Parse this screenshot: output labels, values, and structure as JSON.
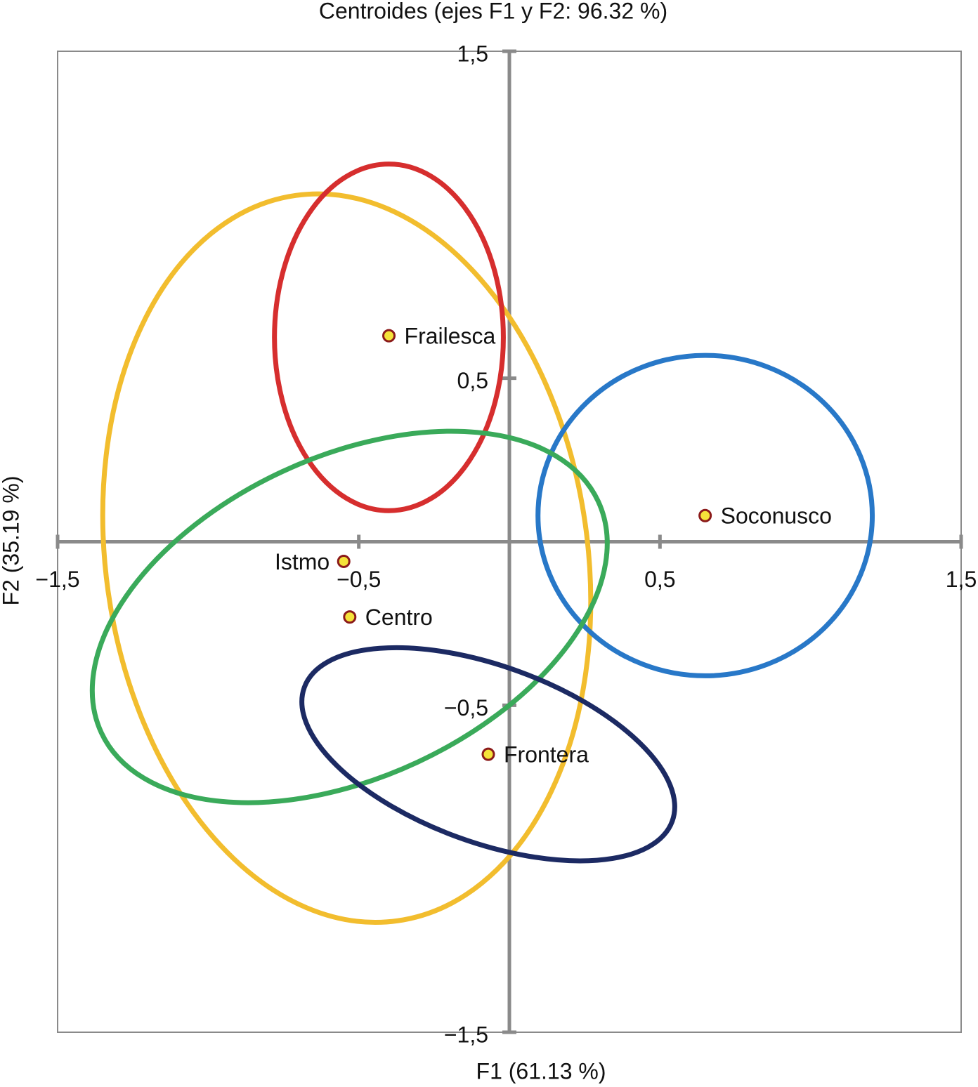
{
  "chart_data": {
    "type": "scatter",
    "title": "Centroides (ejes F1 y F2: 96.32 %)",
    "x_label": "F1 (61.13 %)",
    "y_label": "F2 (35.19 %)",
    "xlim": [
      -1.5,
      1.5
    ],
    "ylim": [
      -1.5,
      1.5
    ],
    "xticks": [
      {
        "value": -1.5,
        "label": "−1,5"
      },
      {
        "value": -0.5,
        "label": "−0,5"
      },
      {
        "value": 0.5,
        "label": "0,5"
      },
      {
        "value": 1.5,
        "label": "1,5"
      }
    ],
    "yticks": [
      {
        "value": -1.5,
        "label": "−1,5"
      },
      {
        "value": -0.5,
        "label": "−0,5"
      },
      {
        "value": 0.5,
        "label": "0,5"
      },
      {
        "value": 1.5,
        "label": "1,5"
      }
    ],
    "labels": [
      "Frailesca",
      "Soconusco",
      "Istmo",
      "Centro",
      "Frontera"
    ],
    "x": [
      -0.4,
      0.65,
      -0.55,
      -0.53,
      -0.07
    ],
    "values": [
      0.63,
      0.08,
      -0.06,
      -0.23,
      -0.65
    ],
    "point_color": "#f5e33a",
    "point_edge": "#8b1a1a",
    "axis_color": "#8a8a8a",
    "ellipses": [
      {
        "color": "#f2bd2e",
        "cx": -0.54,
        "cy": -0.05,
        "rx": 0.8,
        "ry": 1.12,
        "angle": -8
      },
      {
        "color": "#d62e2e",
        "cx": -0.4,
        "cy": 0.625,
        "rx": 0.38,
        "ry": 0.53,
        "angle": 0
      },
      {
        "color": "#2878c8",
        "cx": 0.65,
        "cy": 0.08,
        "rx": 0.555,
        "ry": 0.49,
        "angle": 0
      },
      {
        "color": "#3aaa5a",
        "cx": -0.53,
        "cy": -0.23,
        "rx": 0.91,
        "ry": 0.49,
        "angle": -25
      },
      {
        "color": "#1c2a63",
        "cx": -0.07,
        "cy": -0.65,
        "rx": 0.65,
        "ry": 0.27,
        "angle": 20
      }
    ]
  }
}
